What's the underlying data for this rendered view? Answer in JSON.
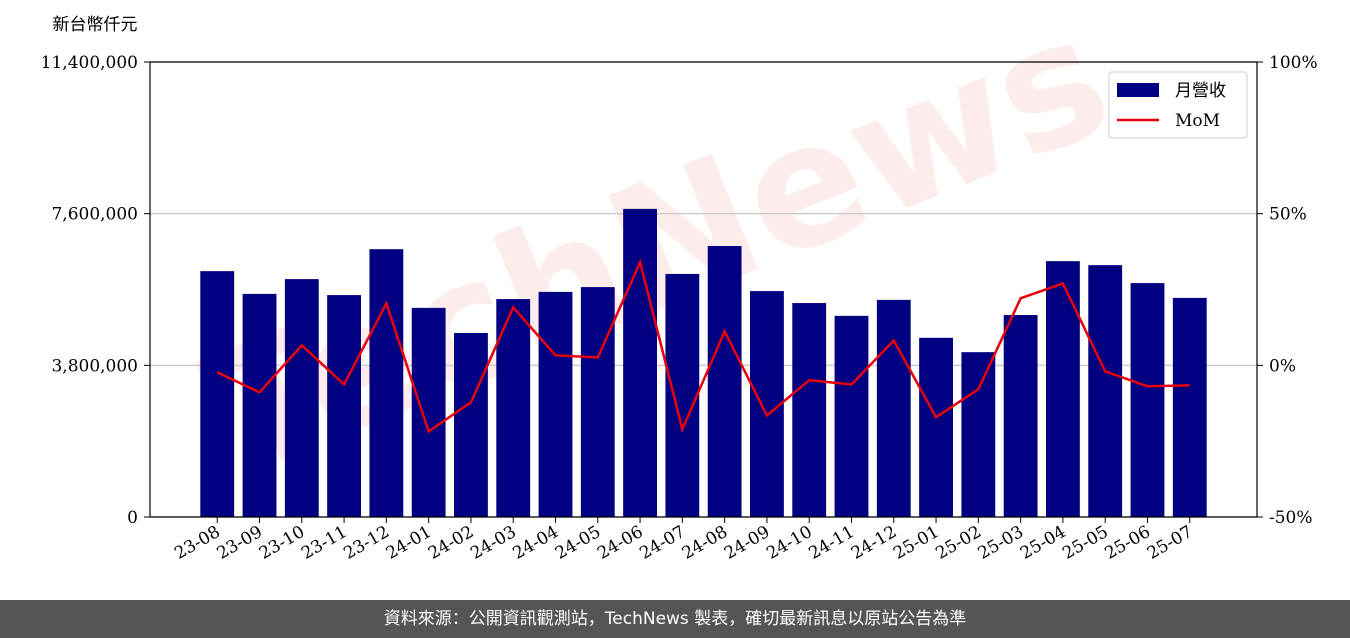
{
  "chart_data": {
    "type": "bar-line",
    "y_label": "新台幣仟元",
    "watermark": "TechNews",
    "categories": [
      "23-08",
      "23-09",
      "23-10",
      "23-11",
      "23-12",
      "24-01",
      "24-02",
      "24-03",
      "24-04",
      "24-05",
      "24-06",
      "24-07",
      "24-08",
      "24-09",
      "24-10",
      "24-11",
      "24-12",
      "25-01",
      "25-02",
      "25-03",
      "25-04",
      "25-05",
      "25-06",
      "25-07"
    ],
    "series": [
      {
        "name": "月營收",
        "color": "#000080",
        "type": "bar",
        "values": [
          6160000,
          5590000,
          5960000,
          5560000,
          6710000,
          5240000,
          4610000,
          5460000,
          5640000,
          5760000,
          7720000,
          6090000,
          6790000,
          5660000,
          5360000,
          5040000,
          5440000,
          4490000,
          4130000,
          5060000,
          6410000,
          6310000,
          5860000,
          5490000
        ]
      },
      {
        "name": "MoM",
        "color": "#e8000b",
        "type": "line",
        "axis": "y2",
        "values": [
          -2.3,
          -8.9,
          6.6,
          -6.3,
          20.4,
          -21.8,
          -12.2,
          19.1,
          3.3,
          2.6,
          34.0,
          -21.1,
          11.2,
          -16.5,
          -4.9,
          -6.3,
          8.2,
          -17.1,
          -7.9,
          22.1,
          27.0,
          -2.0,
          -6.9,
          -6.6
        ]
      }
    ],
    "ylim": [
      0,
      11400000
    ],
    "yticks": [
      0,
      {
        "value": 3800000,
        "label": "3,800,000"
      },
      {
        "value": 7600000,
        "label": "7,600,000"
      },
      {
        "value": 11400000,
        "label": "11,400,000"
      }
    ],
    "y2lim": [
      -50,
      100
    ],
    "y2ticks": [
      {
        "value": -50,
        "label": "-50%"
      },
      {
        "value": 0,
        "label": "0%"
      },
      {
        "value": 50,
        "label": "50%"
      },
      {
        "value": 100,
        "label": "100%"
      }
    ],
    "grid": true,
    "legend": "upper right"
  },
  "footer": "資料來源：公開資訊觀測站，TechNews 製表，確切最新訊息以原站公告為準"
}
